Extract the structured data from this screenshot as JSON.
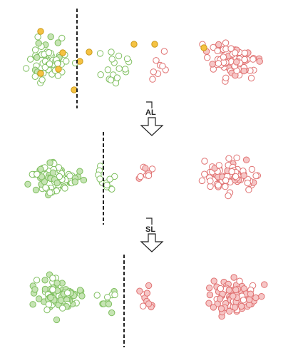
{
  "colors": {
    "green_stroke": "#7fbf5f",
    "green_fill": "#c6e4b4",
    "red_stroke": "#e07070",
    "red_fill": "#f6c6c6",
    "yellow_fill": "#f5c242",
    "yellow_stroke": "#c99a1c",
    "boundary": "#222222"
  },
  "transitions": [
    {
      "label": "AL"
    },
    {
      "label": "SL"
    }
  ],
  "panels": [
    {
      "name": "panel-initial"
    },
    {
      "name": "panel-after-al"
    },
    {
      "name": "panel-after-sl"
    }
  ]
}
